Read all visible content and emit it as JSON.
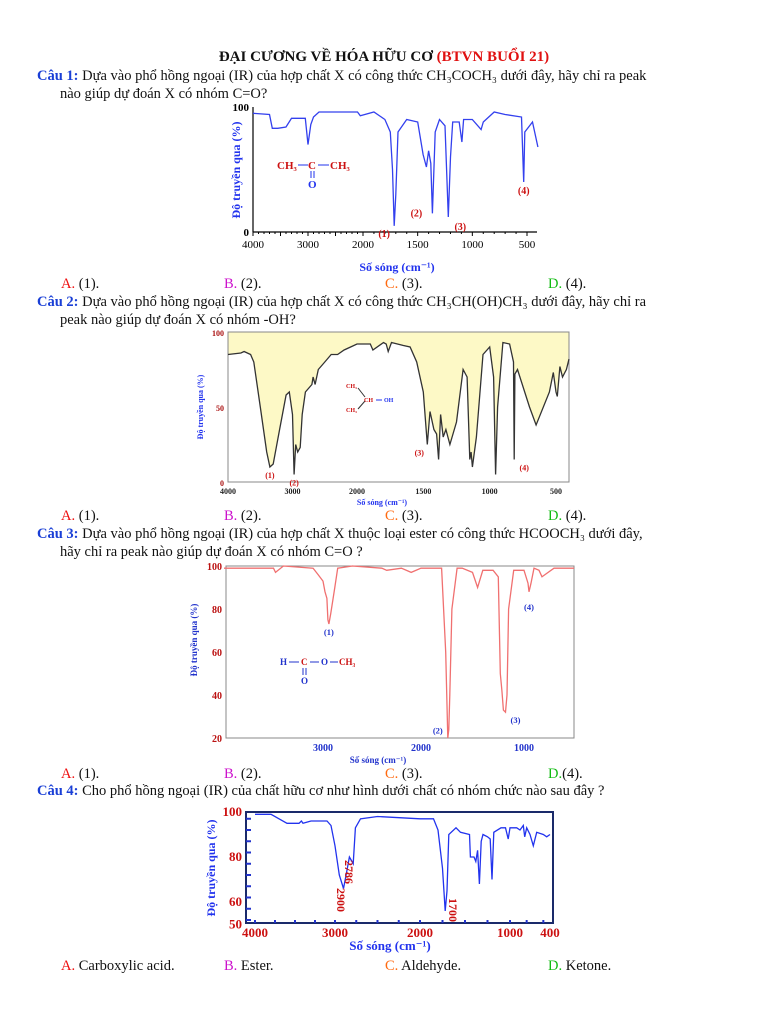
{
  "title": {
    "main": "ĐẠI CƯƠNG VỀ HÓA HỮU CƠ",
    "session": "(BTVN BUỔI 21)"
  },
  "questions": [
    {
      "label": "Câu 1:",
      "line1": "Dựa vào phổ hồng ngoại (IR) của hợp chất X có công thức CH₃COCH₃ dưới đây, hãy chỉ ra peak",
      "line2": "nào giúp dự đoán X có nhóm C=O?",
      "answers": [
        {
          "key": "A.",
          "text": "(1)."
        },
        {
          "key": "B.",
          "text": "(2)."
        },
        {
          "key": "C.",
          "text": "(3)."
        },
        {
          "key": "D.",
          "text": "(4)."
        }
      ]
    },
    {
      "label": "Câu 2:",
      "line1": "Dựa vào phổ hồng ngoại (IR) của hợp chất X có công thức CH₃CH(OH)CH₃ dưới đây, hãy chỉ ra",
      "line2": "peak nào giúp dự đoán X có nhóm -OH?",
      "answers": [
        {
          "key": "A.",
          "text": "(1)."
        },
        {
          "key": "B.",
          "text": "(2)."
        },
        {
          "key": "C.",
          "text": "(3)."
        },
        {
          "key": "D.",
          "text": "(4)."
        }
      ]
    },
    {
      "label": "Câu 3:",
      "line1": "Dựa vào phổ hồng ngoại (IR) của hợp chất X thuộc loại ester có công thức HCOOCH₃ dưới đây,",
      "line2": "hãy chỉ ra peak nào giúp dự đoán X có nhóm C=O ?",
      "answers": [
        {
          "key": "A.",
          "text": "(1)."
        },
        {
          "key": "B.",
          "text": "(2)."
        },
        {
          "key": "C.",
          "text": "(3)."
        },
        {
          "key": "D.",
          "text": "(4)."
        }
      ]
    },
    {
      "label": "Câu 4:",
      "line1": "Cho phổ hồng ngoại (IR) của chất hữu cơ như hình dưới chất có nhóm chức nào sau đây ?",
      "answers": [
        {
          "key": "A.",
          "text": "Carboxylic acid."
        },
        {
          "key": "B.",
          "text": "Ester."
        },
        {
          "key": "C.",
          "text": "Aldehyde."
        },
        {
          "key": "D.",
          "text": "Ketone."
        }
      ]
    }
  ],
  "answer_colors": {
    "A": "#ee1111",
    "B": "#cc11cc",
    "C": "#ff6a10",
    "D": "#11bb11"
  },
  "chart_data": [
    {
      "type": "line",
      "xlabel": "Số sóng (cm⁻¹)",
      "ylabel": "Độ truyền qua (%)",
      "xlim": [
        4000,
        400
      ],
      "ylim": [
        0,
        100
      ],
      "xticks": [
        "4000",
        "3000",
        "2000",
        "1500",
        "1000",
        "500"
      ],
      "yticks": [
        "0",
        "100"
      ],
      "color": "#3340ee",
      "molecule": {
        "left": "CH₃",
        "center": "C",
        "right": "CH₃",
        "below": "O"
      },
      "peak_labels": [
        {
          "text": "(1)",
          "x": 1715
        },
        {
          "text": "(2)",
          "x": 1365
        },
        {
          "text": "(3)",
          "x": 1220
        },
        {
          "text": "(4)",
          "x": 530
        }
      ],
      "x": [
        4000,
        3700,
        3650,
        3550,
        3400,
        3300,
        3050,
        3000,
        2950,
        2900,
        2800,
        2100,
        2050,
        1900,
        1800,
        1750,
        1730,
        1715,
        1700,
        1680,
        1600,
        1500,
        1450,
        1420,
        1400,
        1380,
        1365,
        1340,
        1300,
        1250,
        1220,
        1200,
        1180,
        1120,
        1095,
        1080,
        1000,
        920,
        900,
        800,
        700,
        550,
        530,
        520,
        450,
        400
      ],
      "y": [
        95,
        94,
        83,
        83,
        84,
        91,
        91,
        70,
        86,
        92,
        96,
        96,
        93,
        96,
        90,
        80,
        50,
        5,
        30,
        80,
        90,
        88,
        62,
        52,
        65,
        55,
        15,
        80,
        90,
        85,
        12,
        60,
        88,
        88,
        72,
        90,
        90,
        82,
        88,
        96,
        94,
        92,
        40,
        80,
        88,
        68
      ]
    },
    {
      "type": "area",
      "xlabel": "Số sóng (cm⁻¹)",
      "ylabel": "Độ truyền qua (%)",
      "xlim": [
        4000,
        400
      ],
      "ylim": [
        0,
        100
      ],
      "xticks": [
        "4000",
        "3000",
        "2000",
        "1500",
        "1000",
        "500"
      ],
      "yticks": [
        "0",
        "50",
        "100"
      ],
      "color": "#333333",
      "fill": "#fdf9c6",
      "molecule": {
        "top": "CH₃",
        "center": "CH",
        "right": "OH",
        "bottom": "CH₃"
      },
      "peak_labels": [
        {
          "text": "(1)",
          "x": 3350
        },
        {
          "text": "(2)",
          "x": 2975
        },
        {
          "text": "(3)",
          "x": 1470
        },
        {
          "text": "(4)",
          "x": 815
        }
      ],
      "x": [
        4000,
        3800,
        3750,
        3650,
        3600,
        3500,
        3400,
        3350,
        3300,
        3200,
        3100,
        3050,
        3000,
        2975,
        2950,
        2920,
        2880,
        2850,
        2800,
        2700,
        2680,
        2650,
        2600,
        2500,
        2400,
        2300,
        2200,
        2100,
        2000,
        1900,
        1880,
        1800,
        1780,
        1765,
        1740,
        1650,
        1600,
        1550,
        1500,
        1470,
        1450,
        1420,
        1400,
        1385,
        1370,
        1350,
        1330,
        1300,
        1250,
        1200,
        1170,
        1150,
        1140,
        1130,
        1100,
        1050,
        1000,
        970,
        955,
        940,
        900,
        850,
        820,
        815,
        810,
        790,
        700,
        650,
        550,
        520,
        500,
        490,
        470,
        450,
        420,
        400
      ],
      "y": [
        85,
        86,
        87,
        85,
        80,
        50,
        20,
        10,
        12,
        35,
        58,
        60,
        45,
        5,
        25,
        20,
        23,
        45,
        60,
        65,
        70,
        65,
        75,
        80,
        85,
        85,
        88,
        90,
        92,
        92,
        88,
        93,
        92,
        87,
        93,
        91,
        90,
        80,
        60,
        25,
        47,
        35,
        32,
        15,
        45,
        30,
        35,
        25,
        40,
        75,
        70,
        15,
        20,
        10,
        30,
        85,
        90,
        70,
        5,
        50,
        93,
        92,
        80,
        15,
        72,
        75,
        50,
        38,
        60,
        73,
        60,
        57,
        77,
        70,
        75,
        82
      ]
    },
    {
      "type": "line",
      "xlabel": "Số sóng (cm⁻¹)",
      "ylabel": "Độ truyền qua (%)",
      "xlim": [
        4000,
        500
      ],
      "ylim": [
        20,
        100
      ],
      "xticks": [
        "3000",
        "2000",
        "1000"
      ],
      "yticks": [
        "20",
        "40",
        "60",
        "80",
        "100"
      ],
      "color": "#f07070",
      "molecule": {
        "h": "H",
        "c": "C",
        "o": "O",
        "ch3": "CH₃",
        "below": "O"
      },
      "peak_labels": [
        {
          "text": "(1)",
          "x": 2940
        },
        {
          "text": "(2)",
          "x": 1740
        },
        {
          "text": "(3)",
          "x": 1180
        },
        {
          "text": "(4)",
          "x": 950
        }
      ],
      "x": [
        4000,
        3500,
        3480,
        3400,
        3100,
        3050,
        3000,
        2980,
        2960,
        2950,
        2940,
        2920,
        2880,
        2850,
        2700,
        2400,
        2350,
        2200,
        2100,
        2000,
        1800,
        1760,
        1740,
        1730,
        1720,
        1700,
        1650,
        1600,
        1500,
        1450,
        1400,
        1300,
        1250,
        1230,
        1215,
        1200,
        1180,
        1165,
        1150,
        1100,
        1000,
        960,
        950,
        930,
        900,
        850,
        820,
        790,
        700,
        500
      ],
      "y": [
        99,
        99,
        97,
        100,
        99,
        96,
        93,
        88,
        85,
        75,
        73,
        78,
        90,
        99,
        100,
        99,
        98,
        99,
        97,
        99,
        99,
        60,
        20,
        24,
        40,
        80,
        99,
        99,
        97,
        90,
        98,
        98,
        95,
        50,
        42,
        33,
        32,
        40,
        80,
        98,
        98,
        92,
        88,
        92,
        99,
        98,
        95,
        96,
        99,
        99
      ]
    },
    {
      "type": "line",
      "xlabel": "Số sóng (cm⁻¹)",
      "ylabel": "Độ truyền qua (%)",
      "xlim": [
        4000,
        400
      ],
      "ylim": [
        50,
        100
      ],
      "xticks": [
        "4000",
        "3000",
        "2000",
        "1000",
        "400"
      ],
      "yticks": [
        "50",
        "60",
        "80",
        "100"
      ],
      "color": "#2233ee",
      "annotations": [
        {
          "text": "2900",
          "x": 2900
        },
        {
          "text": "2786",
          "x": 2786
        },
        {
          "text": "1700",
          "x": 1700
        }
      ],
      "x": [
        4000,
        3800,
        3700,
        3600,
        3450,
        3420,
        3400,
        3300,
        3100,
        3050,
        3000,
        2950,
        2900,
        2870,
        2830,
        2800,
        2786,
        2760,
        2700,
        2500,
        2000,
        1850,
        1800,
        1750,
        1720,
        1700,
        1680,
        1600,
        1550,
        1450,
        1440,
        1400,
        1380,
        1360,
        1340,
        1320,
        1300,
        1250,
        1220,
        1200,
        1180,
        1100,
        1050,
        1020,
        1000,
        900,
        850,
        800,
        780,
        750,
        700,
        650,
        600,
        500,
        450,
        400
      ],
      "y": [
        99,
        99,
        97,
        95,
        95,
        96,
        95,
        96,
        96,
        94,
        85,
        72,
        66,
        72,
        80,
        78,
        77,
        93,
        97,
        98,
        97,
        97,
        92,
        75,
        56,
        65,
        90,
        93,
        91,
        90,
        80,
        80,
        78,
        83,
        68,
        87,
        90,
        89,
        88,
        70,
        91,
        93,
        93,
        88,
        93,
        93,
        92,
        94,
        89,
        93,
        90,
        85,
        91,
        90,
        89,
        90
      ]
    }
  ]
}
